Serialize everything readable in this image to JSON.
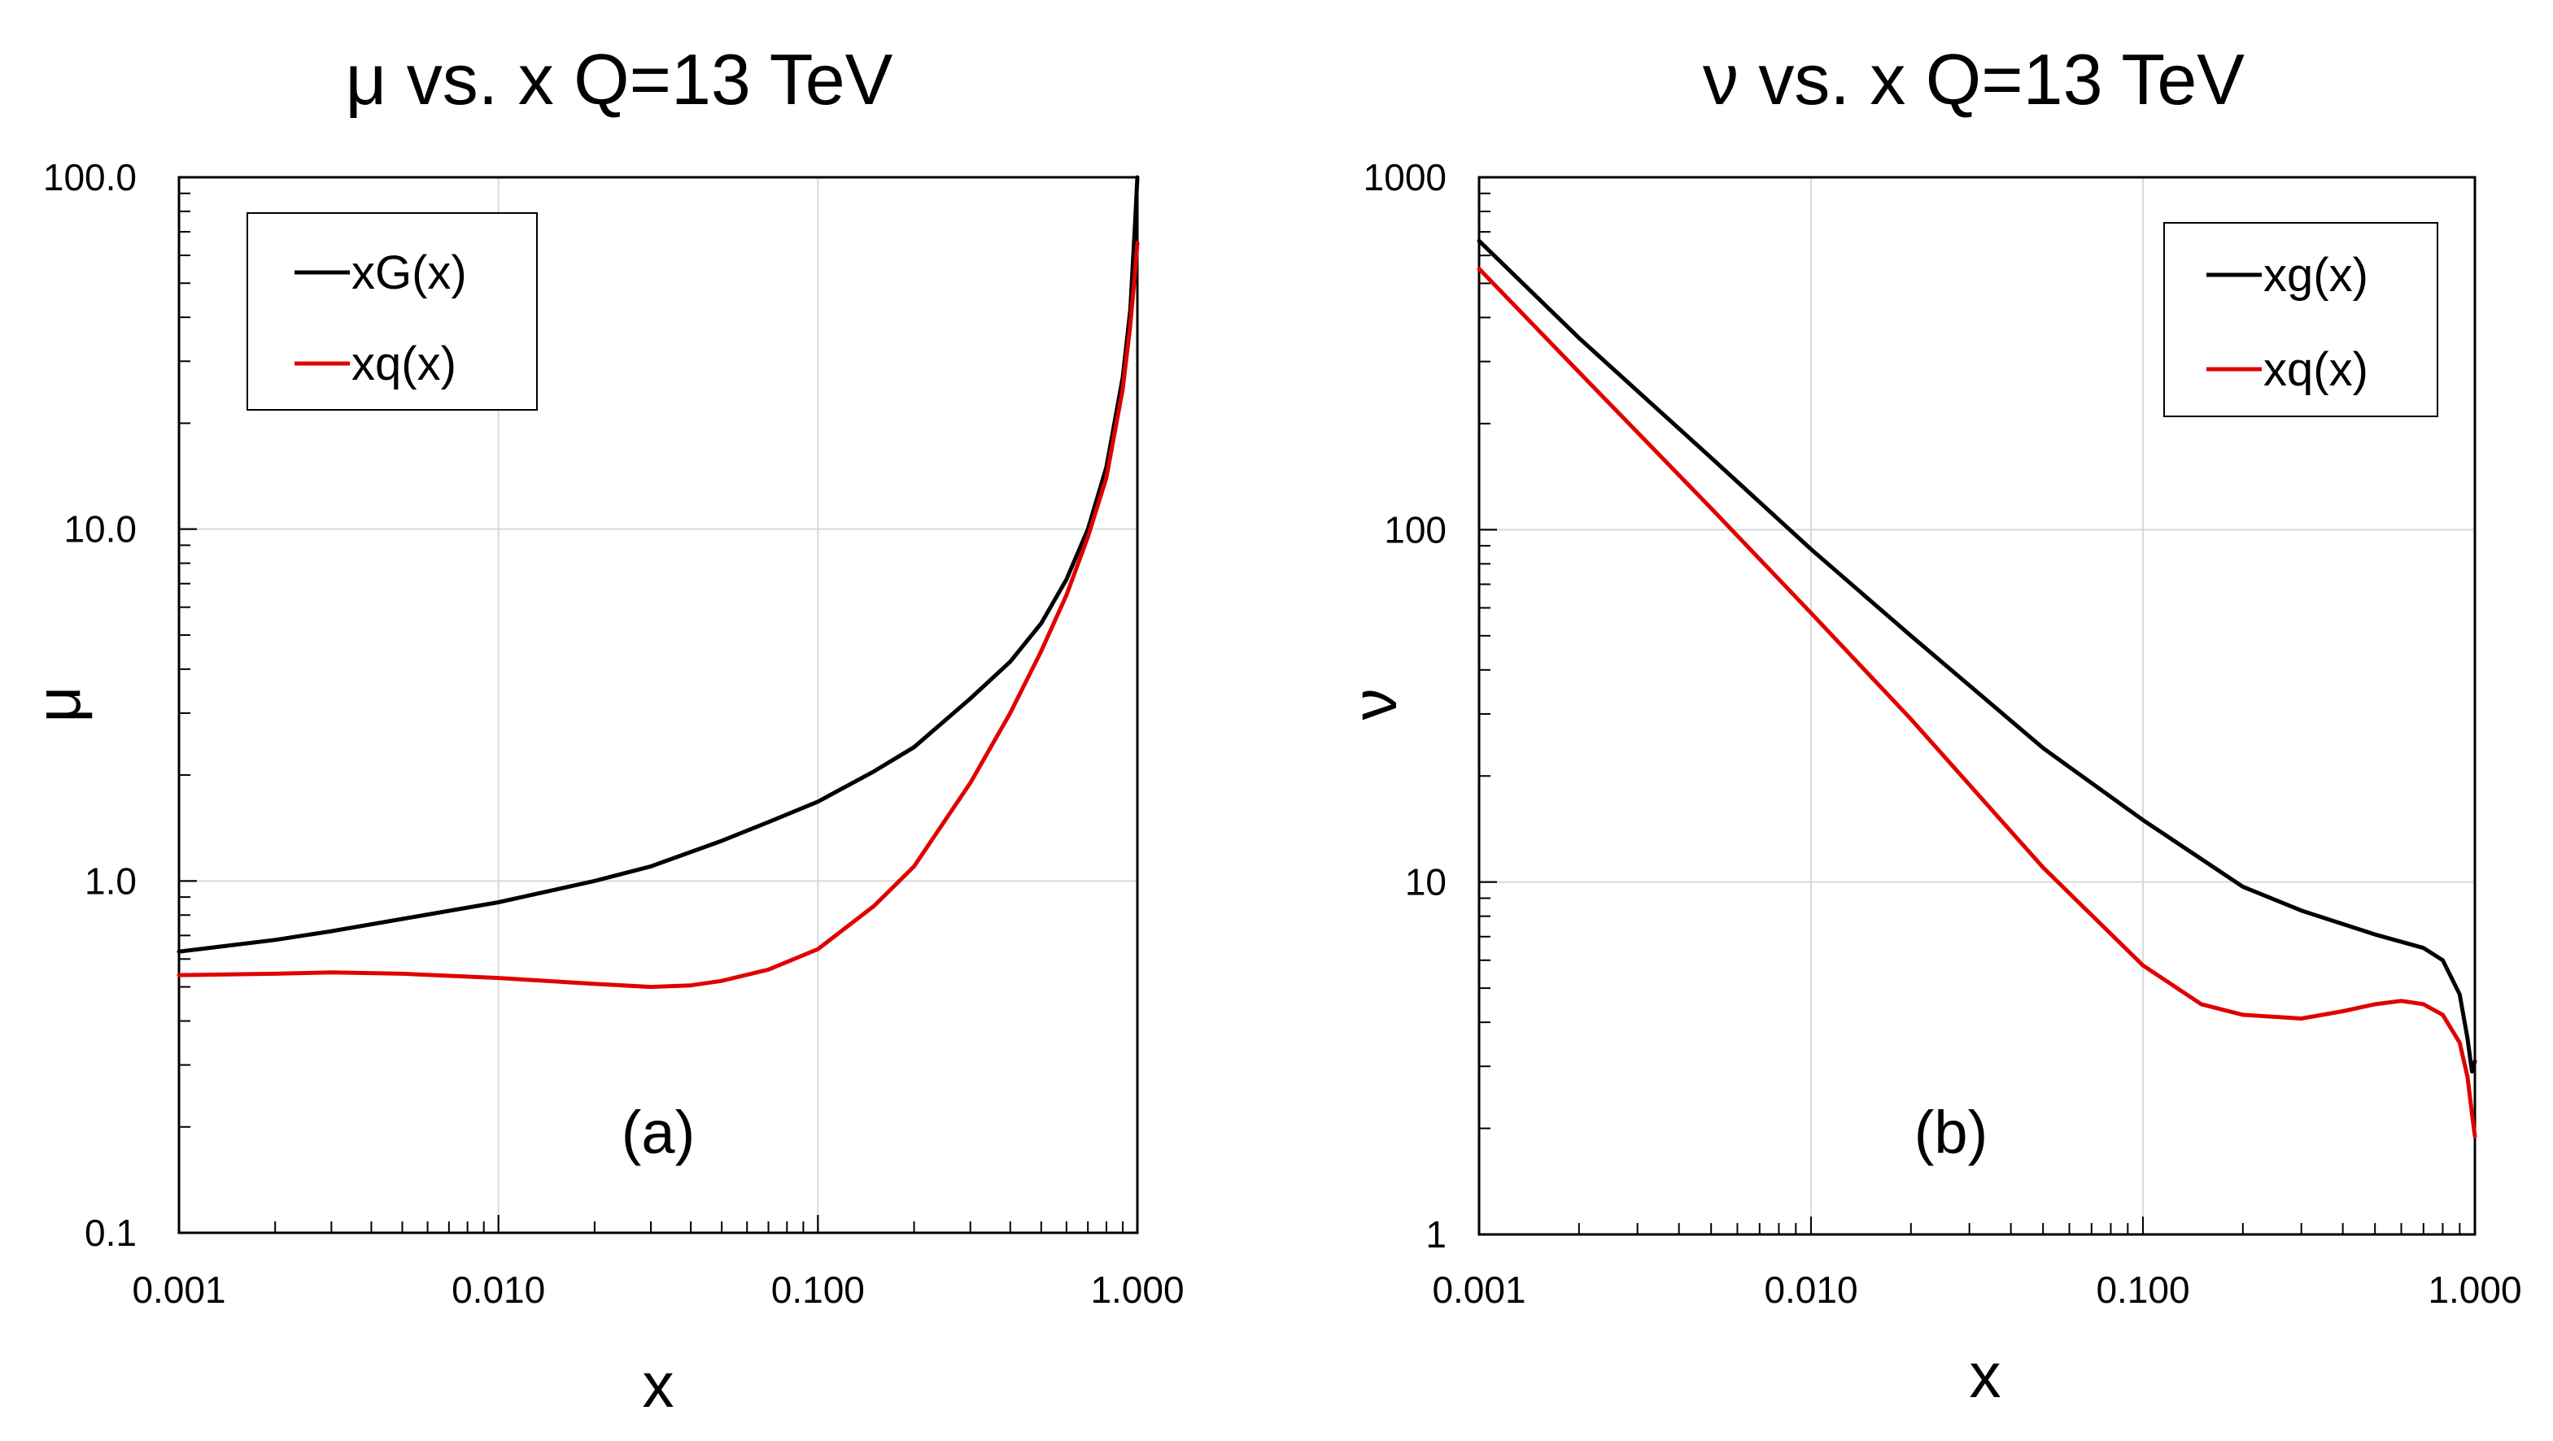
{
  "chart_data": [
    {
      "type": "line",
      "title": "μ vs. x Q=13 TeV",
      "xlabel": "x",
      "ylabel": "μ",
      "xscale": "log",
      "yscale": "log",
      "xlim": [
        0.001,
        1.0
      ],
      "ylim": [
        0.1,
        100.0
      ],
      "x_ticks": [
        0.001,
        0.01,
        0.1,
        1.0
      ],
      "x_tick_labels": [
        "0.001",
        "0.010",
        "0.100",
        "1.000"
      ],
      "y_ticks": [
        0.1,
        1.0,
        10.0,
        100.0
      ],
      "y_tick_labels": [
        "0.1",
        "1.0",
        "10.0",
        "100.0"
      ],
      "grid": true,
      "legend_position": "top-left",
      "annotation": "(a)",
      "series": [
        {
          "name": "xG(x)",
          "color": "#000000",
          "x": [
            0.001,
            0.002,
            0.003,
            0.005,
            0.01,
            0.02,
            0.03,
            0.05,
            0.07,
            0.1,
            0.15,
            0.2,
            0.3,
            0.4,
            0.5,
            0.6,
            0.7,
            0.8,
            0.9,
            0.95,
            0.98,
            1.0
          ],
          "y": [
            0.63,
            0.68,
            0.72,
            0.78,
            0.87,
            1.0,
            1.1,
            1.3,
            1.47,
            1.68,
            2.05,
            2.4,
            3.3,
            4.2,
            5.4,
            7.2,
            10.0,
            15.0,
            27.0,
            42.0,
            70.0,
            100.0
          ]
        },
        {
          "name": "xq(x)",
          "color": "#e00000",
          "x": [
            0.001,
            0.002,
            0.003,
            0.005,
            0.01,
            0.02,
            0.03,
            0.04,
            0.05,
            0.07,
            0.1,
            0.15,
            0.2,
            0.3,
            0.4,
            0.5,
            0.6,
            0.7,
            0.8,
            0.9,
            0.95,
            0.98,
            1.0
          ],
          "y": [
            0.54,
            0.545,
            0.55,
            0.545,
            0.53,
            0.51,
            0.5,
            0.505,
            0.52,
            0.56,
            0.64,
            0.85,
            1.1,
            1.9,
            3.0,
            4.5,
            6.5,
            9.5,
            14.0,
            25.0,
            38.0,
            52.0,
            65.0
          ]
        }
      ]
    },
    {
      "type": "line",
      "title": "ν vs. x Q=13 TeV",
      "xlabel": "x",
      "ylabel": "ν",
      "xscale": "log",
      "yscale": "log",
      "xlim": [
        0.001,
        1.0
      ],
      "ylim": [
        1,
        1000
      ],
      "x_ticks": [
        0.001,
        0.01,
        0.1,
        1.0
      ],
      "x_tick_labels": [
        "0.001",
        "0.010",
        "0.100",
        "1.000"
      ],
      "y_ticks": [
        1,
        10,
        100,
        1000
      ],
      "y_tick_labels": [
        "1",
        "10",
        "100",
        "1000"
      ],
      "grid": true,
      "legend_position": "top-right",
      "annotation": "(b)",
      "series": [
        {
          "name": "xg(x)",
          "color": "#000000",
          "x": [
            0.001,
            0.002,
            0.005,
            0.01,
            0.02,
            0.05,
            0.1,
            0.2,
            0.3,
            0.5,
            0.7,
            0.8,
            0.9,
            0.95,
            0.98,
            1.0
          ],
          "y": [
            660,
            350,
            160,
            88,
            50,
            24,
            15,
            9.7,
            8.3,
            7.1,
            6.5,
            6.0,
            4.8,
            3.6,
            2.9,
            3.1
          ]
        },
        {
          "name": "xq(x)",
          "color": "#e00000",
          "x": [
            0.001,
            0.002,
            0.005,
            0.01,
            0.02,
            0.05,
            0.1,
            0.15,
            0.2,
            0.3,
            0.4,
            0.5,
            0.6,
            0.7,
            0.8,
            0.9,
            0.95,
            0.98,
            1.0
          ],
          "y": [
            550,
            280,
            115,
            58,
            29,
            11,
            5.8,
            4.5,
            4.2,
            4.1,
            4.3,
            4.5,
            4.6,
            4.5,
            4.2,
            3.5,
            2.8,
            2.2,
            1.9
          ]
        }
      ]
    }
  ]
}
